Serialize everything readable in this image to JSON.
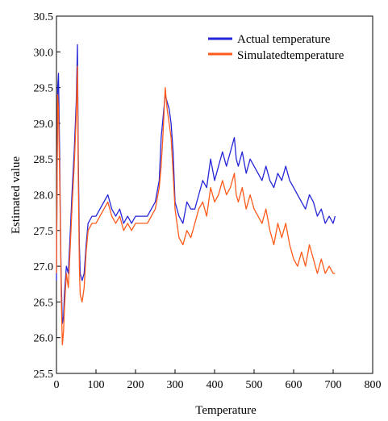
{
  "chart_data": {
    "type": "line",
    "xlabel": "Temperature",
    "ylabel": "Estimated value",
    "xlim": [
      0,
      800
    ],
    "ylim": [
      25.5,
      30.5
    ],
    "xticks": [
      0,
      100,
      200,
      300,
      400,
      500,
      600,
      700,
      800
    ],
    "yticks": [
      25.5,
      26.0,
      26.5,
      27.0,
      27.5,
      28.0,
      28.5,
      29.0,
      29.5,
      30.0,
      30.5
    ],
    "xtick_labels": [
      "0",
      "100",
      "200",
      "300",
      "400",
      "500",
      "600",
      "700",
      "800"
    ],
    "ytick_labels": [
      "25.5",
      "26.0",
      "26.5",
      "27.0",
      "27.5",
      "28.0",
      "28.5",
      "29.0",
      "29.5",
      "30.0",
      "30.5"
    ],
    "grid": false,
    "legend_position": "top-right",
    "series": [
      {
        "name": "Actual temperature",
        "color": "#2626d9",
        "x": [
          0,
          3,
          5,
          8,
          10,
          12,
          15,
          18,
          20,
          25,
          30,
          35,
          40,
          45,
          50,
          53,
          55,
          58,
          60,
          65,
          70,
          75,
          80,
          90,
          100,
          110,
          120,
          130,
          140,
          150,
          160,
          170,
          180,
          190,
          200,
          210,
          220,
          230,
          240,
          250,
          260,
          265,
          270,
          275,
          280,
          285,
          290,
          295,
          300,
          305,
          310,
          320,
          330,
          340,
          350,
          360,
          370,
          380,
          390,
          400,
          410,
          420,
          430,
          440,
          450,
          455,
          460,
          470,
          480,
          490,
          500,
          510,
          520,
          530,
          540,
          550,
          560,
          570,
          580,
          590,
          600,
          610,
          620,
          630,
          640,
          650,
          660,
          670,
          680,
          690,
          700,
          705
        ],
        "y": [
          26.8,
          29.5,
          29.7,
          28.6,
          27.6,
          26.8,
          26.2,
          26.3,
          26.6,
          27.0,
          26.9,
          27.5,
          28.1,
          28.6,
          29.3,
          30.1,
          28.6,
          27.3,
          26.9,
          26.8,
          26.9,
          27.3,
          27.6,
          27.7,
          27.7,
          27.8,
          27.9,
          28.0,
          27.8,
          27.7,
          27.8,
          27.6,
          27.7,
          27.6,
          27.7,
          27.7,
          27.7,
          27.7,
          27.8,
          27.9,
          28.2,
          28.8,
          29.1,
          29.4,
          29.3,
          29.2,
          29.0,
          28.6,
          27.9,
          27.8,
          27.7,
          27.6,
          27.9,
          27.8,
          27.8,
          28.0,
          28.2,
          28.1,
          28.5,
          28.2,
          28.4,
          28.6,
          28.4,
          28.6,
          28.8,
          28.5,
          28.4,
          28.6,
          28.3,
          28.5,
          28.4,
          28.3,
          28.2,
          28.4,
          28.2,
          28.1,
          28.3,
          28.2,
          28.4,
          28.2,
          28.1,
          28.0,
          27.9,
          27.8,
          28.0,
          27.9,
          27.7,
          27.8,
          27.6,
          27.7,
          27.6,
          27.7
        ]
      },
      {
        "name": "Simulatedtemperature",
        "color": "#ff5a1a",
        "x": [
          0,
          3,
          5,
          8,
          10,
          12,
          15,
          18,
          20,
          25,
          30,
          35,
          40,
          45,
          50,
          53,
          55,
          58,
          60,
          65,
          70,
          75,
          80,
          90,
          100,
          110,
          120,
          130,
          140,
          150,
          160,
          170,
          180,
          190,
          200,
          210,
          220,
          230,
          240,
          250,
          260,
          265,
          270,
          275,
          280,
          285,
          290,
          295,
          300,
          305,
          310,
          320,
          330,
          340,
          350,
          360,
          370,
          380,
          390,
          400,
          410,
          420,
          430,
          440,
          450,
          455,
          460,
          470,
          480,
          490,
          500,
          510,
          520,
          530,
          540,
          550,
          560,
          570,
          580,
          590,
          600,
          610,
          620,
          630,
          640,
          650,
          660,
          670,
          680,
          690,
          700,
          705
        ],
        "y": [
          26.9,
          29.4,
          29.2,
          28.3,
          27.5,
          26.6,
          25.9,
          26.1,
          26.4,
          26.9,
          26.7,
          27.3,
          27.9,
          28.4,
          29.1,
          29.8,
          28.3,
          27.0,
          26.6,
          26.5,
          26.7,
          27.2,
          27.5,
          27.6,
          27.6,
          27.7,
          27.8,
          27.9,
          27.7,
          27.6,
          27.7,
          27.5,
          27.6,
          27.5,
          27.6,
          27.6,
          27.6,
          27.6,
          27.7,
          27.8,
          28.1,
          28.4,
          28.9,
          29.5,
          29.2,
          29.0,
          28.8,
          28.3,
          27.8,
          27.6,
          27.4,
          27.3,
          27.5,
          27.4,
          27.6,
          27.8,
          27.9,
          27.7,
          28.1,
          27.9,
          28.0,
          28.2,
          28.0,
          28.1,
          28.3,
          28.0,
          27.9,
          28.1,
          27.8,
          28.0,
          27.8,
          27.7,
          27.6,
          27.8,
          27.5,
          27.3,
          27.6,
          27.4,
          27.6,
          27.3,
          27.1,
          27.0,
          27.2,
          27.0,
          27.3,
          27.1,
          26.9,
          27.1,
          26.9,
          27.0,
          26.9,
          26.9
        ]
      }
    ]
  }
}
